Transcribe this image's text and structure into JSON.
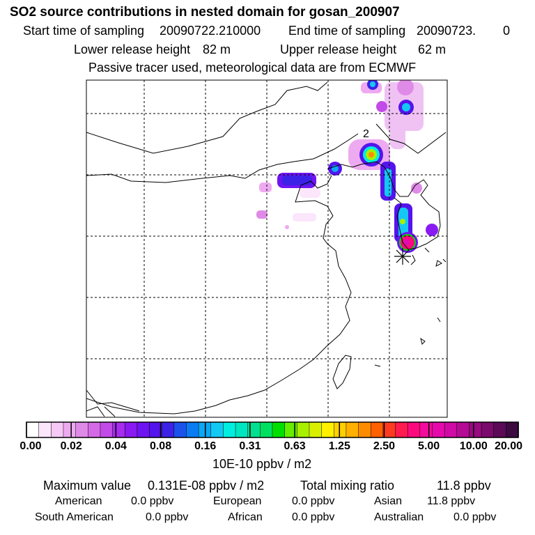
{
  "title": "SO2 source contributions in nested domain for gosan_200907",
  "header": {
    "start_label": "Start time of sampling",
    "start_value": "20090722.210000",
    "end_label": "End time of sampling",
    "end_value": "20090723.",
    "end_suffix": "0",
    "lower_label": "Lower release height",
    "lower_value": "82 m",
    "upper_label": "Upper release height",
    "upper_value": "62 m",
    "note": "Passive tracer used, meteorological data are from ECMWF"
  },
  "map": {
    "contour_label": "2",
    "receptor_icon": "asterisk-receptor-icon"
  },
  "colorbar": {
    "ticks": [
      "0.00",
      "0.02",
      "0.04",
      "0.08",
      "0.16",
      "0.31",
      "0.63",
      "1.25",
      "2.50",
      "5.00",
      "10.00",
      "20.00"
    ],
    "units": "10E-10 ppbv / m2",
    "colors": [
      "#ffffff",
      "#fbe6fb",
      "#f5c8f5",
      "#eeaaf0",
      "#e08ae8",
      "#d46ae6",
      "#c24ae8",
      "#a62cee",
      "#8a1af2",
      "#6e14f2",
      "#5414ec",
      "#3c22e6",
      "#1c52ec",
      "#0a7cf2",
      "#0aa8f4",
      "#14c8f4",
      "#00eee0",
      "#00e6c0",
      "#00e090",
      "#00e060",
      "#00e000",
      "#66ee00",
      "#a8f000",
      "#d8f000",
      "#fff000",
      "#ffd000",
      "#ffb000",
      "#ff8c00",
      "#ff6000",
      "#ff3a20",
      "#ff1a50",
      "#ff0a7c",
      "#f40a9c",
      "#e60aac",
      "#d00aa4",
      "#b40a94",
      "#980a80",
      "#7a0a6c",
      "#5c0a58",
      "#3c0a40"
    ]
  },
  "summary": {
    "max_label": "Maximum value",
    "max_value": "0.131E-08 ppbv / m2",
    "total_label": "Total mixing ratio",
    "total_value": "11.8 ppbv",
    "regions": [
      {
        "name": "American",
        "value": "0.0 ppbv"
      },
      {
        "name": "European",
        "value": "0.0 ppbv"
      },
      {
        "name": "Asian",
        "value": "11.8 ppbv"
      },
      {
        "name": "South American",
        "value": "0.0 ppbv"
      },
      {
        "name": "African",
        "value": "0.0 ppbv"
      },
      {
        "name": "Australian",
        "value": "0.0 ppbv"
      }
    ]
  }
}
